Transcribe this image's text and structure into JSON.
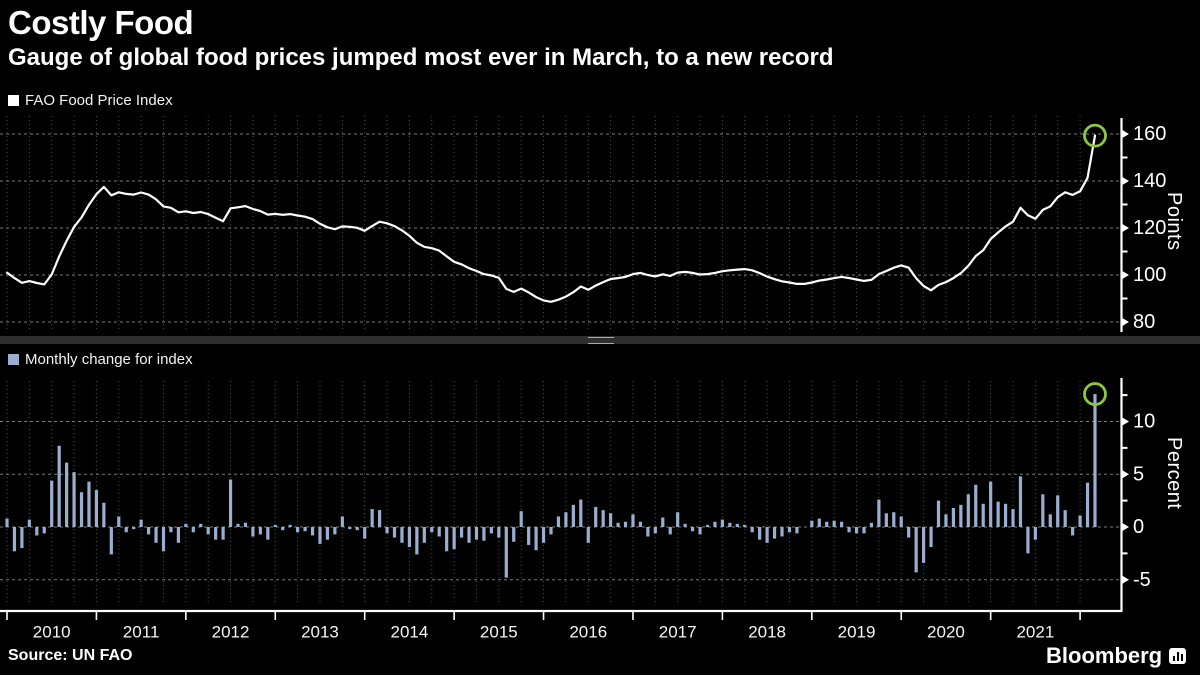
{
  "header": {
    "title": "Costly Food",
    "subtitle": "Gauge of global food prices jumped most ever in March, to a new record"
  },
  "footer": {
    "source": "Source: UN FAO",
    "brand": "Bloomberg"
  },
  "colors": {
    "background": "#000000",
    "line": "#ffffff",
    "bar": "#9aafd0",
    "highlight_circle": "#8dc63f",
    "grid_vertical": "#4f4f4f",
    "grid_horizontal": "#7a7a7a",
    "axis": "#ffffff"
  },
  "chart_data": [
    {
      "type": "line",
      "legend": "FAO Food Price Index",
      "unit": "Points",
      "x_start": "2010-01",
      "x_end": "2022-03",
      "x_tick_years": [
        2010,
        2011,
        2012,
        2013,
        2014,
        2015,
        2016,
        2017,
        2018,
        2019,
        2020,
        2021
      ],
      "ylim": [
        75,
        168
      ],
      "yticks": [
        80,
        100,
        120,
        140,
        160
      ],
      "yticks_minor": [
        90,
        110,
        130,
        150
      ],
      "grid": true,
      "legend_position": "top-left",
      "line_color": "#ffffff",
      "highlight_circle_color": "#8dc63f",
      "last_value_circled": 159.3,
      "values": [
        101.0,
        98.7,
        96.7,
        97.4,
        96.6,
        96.0,
        100.2,
        107.9,
        114.5,
        120.5,
        124.5,
        129.9,
        134.4,
        137.5,
        133.9,
        135.2,
        134.5,
        134.2,
        135.1,
        134.2,
        132.2,
        129.2,
        128.6,
        126.7,
        127.1,
        126.4,
        126.8,
        125.9,
        124.4,
        122.9,
        128.4,
        128.8,
        129.3,
        128.1,
        127.2,
        125.7,
        126.0,
        125.6,
        125.9,
        125.3,
        124.8,
        123.8,
        121.8,
        120.3,
        119.5,
        120.7,
        120.5,
        120.1,
        118.8,
        120.8,
        122.7,
        122.0,
        120.8,
        119.0,
        116.7,
        113.7,
        112.0,
        111.4,
        110.4,
        107.9,
        105.6,
        104.5,
        102.9,
        101.7,
        100.4,
        99.8,
        98.8,
        94.1,
        92.8,
        94.2,
        92.6,
        90.6,
        89.2,
        88.6,
        89.5,
        90.8,
        92.7,
        95.1,
        93.7,
        95.5,
        97.0,
        98.3,
        98.7,
        99.2,
        100.4,
        100.9,
        100.0,
        99.4,
        100.3,
        99.6,
        101.0,
        101.3,
        100.9,
        100.2,
        100.4,
        100.9,
        101.6,
        102.0,
        102.3,
        102.5,
        102.0,
        100.8,
        99.3,
        98.2,
        97.3,
        96.8,
        96.2,
        96.2,
        96.8,
        97.6,
        98.1,
        98.7,
        99.2,
        98.7,
        98.1,
        97.5,
        97.9,
        100.4,
        101.7,
        103.1,
        104.1,
        103.1,
        98.7,
        95.3,
        93.5,
        95.8,
        97.0,
        98.7,
        100.8,
        103.9,
        108.1,
        110.5,
        115.3,
        118.1,
        120.7,
        122.7,
        128.6,
        125.4,
        123.9,
        127.7,
        129.2,
        133.1,
        135.2,
        134.1,
        135.6,
        141.3,
        159.3
      ]
    },
    {
      "type": "bar",
      "legend": "Monthly change for index",
      "unit": "Percent",
      "x_start": "2010-01",
      "x_end": "2022-03",
      "x_tick_years": [
        2010,
        2011,
        2012,
        2013,
        2014,
        2015,
        2016,
        2017,
        2018,
        2019,
        2020,
        2021
      ],
      "ylim": [
        -7.5,
        14.2
      ],
      "yticks": [
        -5,
        0,
        5,
        10
      ],
      "yticks_minor": [
        -2.5,
        2.5,
        7.5,
        12.5
      ],
      "grid": true,
      "legend_position": "top-left",
      "bar_color": "#9aafd0",
      "highlight_circle_color": "#8dc63f",
      "last_value_circled": 12.6,
      "values": [
        0.8,
        -2.3,
        -2.0,
        0.7,
        -0.8,
        -0.6,
        4.4,
        7.7,
        6.1,
        5.2,
        3.3,
        4.3,
        3.5,
        2.3,
        -2.6,
        1.0,
        -0.5,
        -0.2,
        0.7,
        -0.7,
        -1.5,
        -2.3,
        -0.5,
        -1.5,
        0.3,
        -0.5,
        0.3,
        -0.7,
        -1.2,
        -1.2,
        4.5,
        0.3,
        0.4,
        -0.9,
        -0.7,
        -1.2,
        0.2,
        -0.3,
        0.2,
        -0.5,
        -0.4,
        -0.8,
        -1.6,
        -1.2,
        -0.7,
        1.0,
        -0.2,
        -0.3,
        -1.1,
        1.7,
        1.6,
        -0.6,
        -1.0,
        -1.5,
        -1.9,
        -2.6,
        -1.5,
        -0.5,
        -0.9,
        -2.3,
        -2.1,
        -1.0,
        -1.5,
        -1.2,
        -1.3,
        -0.6,
        -1.0,
        -4.8,
        -1.4,
        1.5,
        -1.7,
        -2.2,
        -1.5,
        -0.7,
        1.0,
        1.4,
        2.1,
        2.6,
        -1.5,
        1.9,
        1.6,
        1.3,
        0.4,
        0.5,
        1.2,
        0.5,
        -0.9,
        -0.6,
        0.9,
        -0.7,
        1.4,
        0.3,
        -0.4,
        -0.7,
        0.2,
        0.5,
        0.7,
        0.4,
        0.3,
        0.2,
        -0.5,
        -1.2,
        -1.5,
        -1.1,
        -0.9,
        -0.5,
        -0.6,
        0.0,
        0.6,
        0.8,
        0.5,
        0.6,
        0.5,
        -0.5,
        -0.6,
        -0.6,
        0.4,
        2.6,
        1.3,
        1.4,
        1.0,
        -1.0,
        -4.3,
        -3.4,
        -1.9,
        2.5,
        1.2,
        1.8,
        2.1,
        3.1,
        4.0,
        2.2,
        4.3,
        2.4,
        2.2,
        1.7,
        4.8,
        -2.5,
        -1.2,
        3.1,
        1.2,
        3.0,
        1.6,
        -0.8,
        1.1,
        4.2,
        12.6
      ]
    }
  ]
}
